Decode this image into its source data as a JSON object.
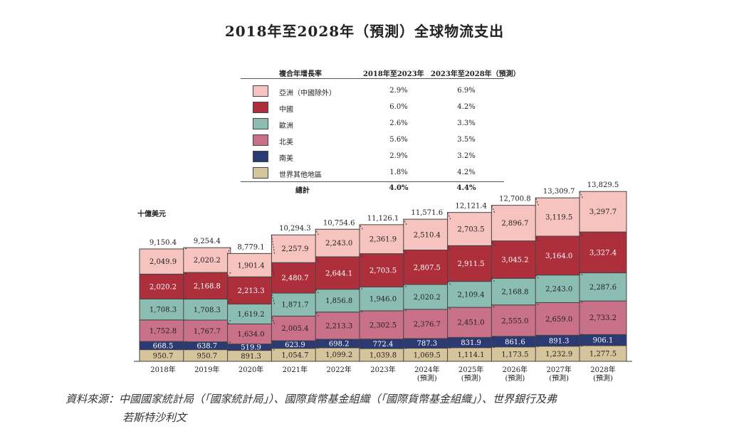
{
  "title": "2018年至2028年（預測）全球物流支出",
  "unit": "十億美元",
  "legend": {
    "header": {
      "label": "複合年增長率",
      "col1": "2018年至2023年",
      "col2": "2023年至2028年（預測）"
    },
    "rows": [
      {
        "label": "亞洲（中國除外）",
        "color": "#f6c3bf",
        "v1": "2.9%",
        "v2": "6.9%"
      },
      {
        "label": "中國",
        "color": "#ad2f3c",
        "v1": "6.0%",
        "v2": "4.2%"
      },
      {
        "label": "歐洲",
        "color": "#8cbdb3",
        "v1": "2.6%",
        "v2": "3.3%"
      },
      {
        "label": "北美",
        "color": "#c97189",
        "v1": "5.6%",
        "v2": "3.5%"
      },
      {
        "label": "南美",
        "color": "#2c3a73",
        "v1": "2.9%",
        "v2": "3.2%"
      },
      {
        "label": "世界其他地區",
        "color": "#d6c49c",
        "v1": "1.8%",
        "v2": "4.2%"
      }
    ],
    "total": {
      "label": "總計",
      "v1": "4.0%",
      "v2": "4.4%"
    }
  },
  "chart_data": {
    "type": "bar",
    "stacked": true,
    "categories": [
      "2018年",
      "2019年",
      "2020年",
      "2021年",
      "2022年",
      "2023年",
      "2024年\n(預測)",
      "2025年\n(預測)",
      "2026年\n(預測)",
      "2027年\n(預測)",
      "2028年\n(預測)"
    ],
    "series": [
      {
        "name": "世界其他地區",
        "color": "#d6c49c",
        "values": [
          950.7,
          950.7,
          891.3,
          1054.7,
          1099.2,
          1039.8,
          1069.5,
          1114.1,
          1173.5,
          1232.9,
          1277.5
        ]
      },
      {
        "name": "南美",
        "color": "#2c3a73",
        "values": [
          668.5,
          638.7,
          519.9,
          623.9,
          698.2,
          772.4,
          787.3,
          831.9,
          861.6,
          891.3,
          906.1
        ]
      },
      {
        "name": "北美",
        "color": "#c97189",
        "values": [
          1752.8,
          1767.7,
          1634.0,
          2005.4,
          2213.3,
          2302.5,
          2376.7,
          2451.0,
          2555.0,
          2659.0,
          2733.2
        ]
      },
      {
        "name": "歐洲",
        "color": "#8cbdb3",
        "values": [
          1708.3,
          1708.3,
          1619.2,
          1871.7,
          1856.8,
          1946.0,
          2020.2,
          2109.4,
          2168.8,
          2243.0,
          2287.6
        ]
      },
      {
        "name": "中國",
        "color": "#ad2f3c",
        "values": [
          2020.2,
          2168.8,
          2213.3,
          2480.7,
          2644.1,
          2703.5,
          2807.5,
          2911.5,
          3045.2,
          3164.0,
          3327.4
        ]
      },
      {
        "name": "亞洲（中國除外）",
        "color": "#f6c3bf",
        "values": [
          2049.9,
          2020.2,
          1901.4,
          2257.9,
          2243.0,
          2361.9,
          2510.4,
          2703.5,
          2896.7,
          3119.5,
          3297.7
        ]
      }
    ],
    "series_labels": [
      [
        "950.7",
        "950.7",
        "891.3",
        "1,054.7",
        "1,099.2",
        "1,039.8",
        "1,069.5",
        "1,114.1",
        "1,173.5",
        "1,232.9",
        "1,277.5"
      ],
      [
        "668.5",
        "638.7",
        "519.9",
        "623.9",
        "698.2",
        "772.4",
        "787.3",
        "831.9",
        "861.6",
        "891.3",
        "906.1"
      ],
      [
        "1,752.8",
        "1,767.7",
        "1,634.0",
        "2,005.4",
        "2,213.3",
        "2,302.5",
        "2,376.7",
        "2,451.0",
        "2,555.0",
        "2,659.0",
        "2,733.2"
      ],
      [
        "1,708.3",
        "1,708.3",
        "1,619.2",
        "1,871.7",
        "1,856.8",
        "1,946.0",
        "2,020.2",
        "2,109.4",
        "2,168.8",
        "2,243.0",
        "2,287.6"
      ],
      [
        "2,020.2",
        "2,168.8",
        "2,213.3",
        "2,480.7",
        "2,644.1",
        "2,703.5",
        "2,807.5",
        "2,911.5",
        "3,045.2",
        "3,164.0",
        "3,327.4"
      ],
      [
        "2,049.9",
        "2,020.2",
        "1,901.4",
        "2,257.9",
        "2,243.0",
        "2,361.9",
        "2,510.4",
        "2,703.5",
        "2,896.7",
        "3,119.5",
        "3,297.7"
      ]
    ],
    "totals": [
      9150.4,
      9254.4,
      8779.1,
      10294.3,
      10754.6,
      11126.1,
      11571.6,
      12121.4,
      12700.8,
      13309.7,
      13829.5
    ],
    "total_labels": [
      "9,150.4",
      "9,254.4",
      "8,779.1",
      "10,294.3",
      "10,754.6",
      "11,126.1",
      "11,571.6",
      "12,121.4",
      "12,700.8",
      "13,309.7",
      "13,829.5"
    ],
    "ylabel": "十億美元",
    "ylim": [
      0,
      14000
    ],
    "grid": false,
    "legend_position": "top"
  },
  "source": {
    "line1": "資料來源：中國國家統計局（「國家統計局」）、國際貨幣基金組織（「國際貨幣基金組織」）、世界銀行及弗",
    "line2": "若斯特沙利文"
  }
}
